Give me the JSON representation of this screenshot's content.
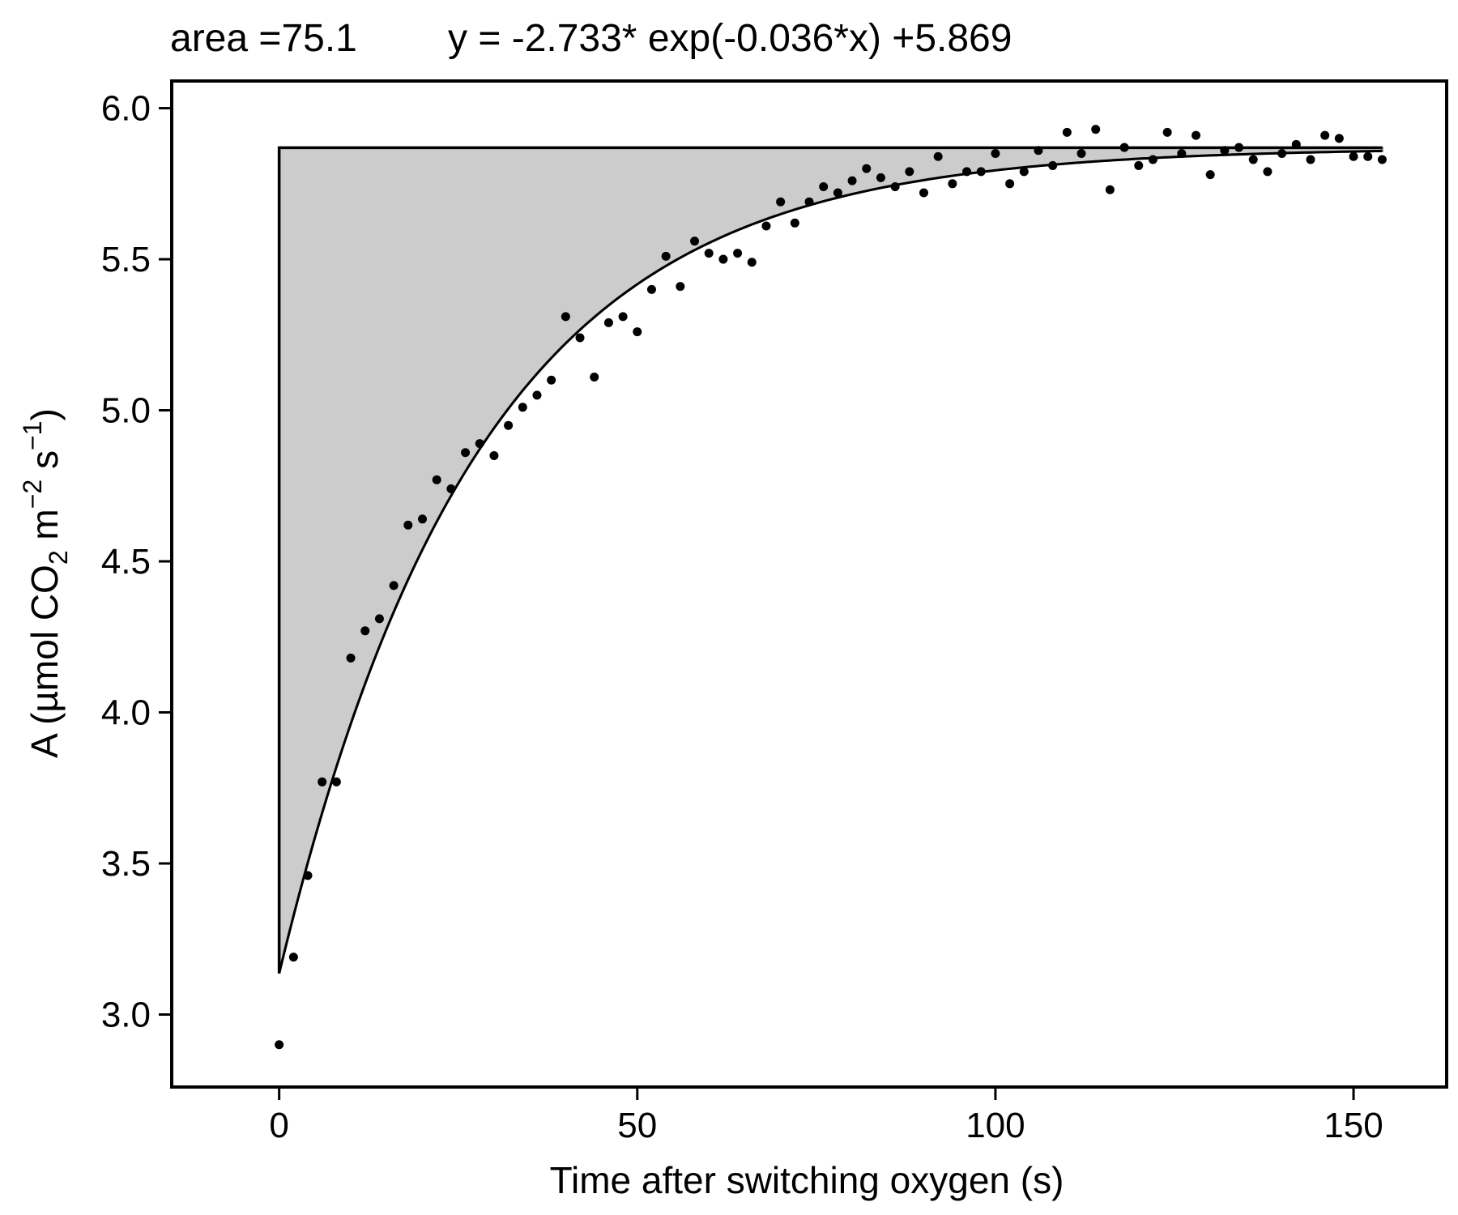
{
  "header": {
    "area_text": "area =75.1",
    "equation_text": "y = -2.733* exp(-0.036*x) +5.869"
  },
  "chart_data": {
    "type": "scatter",
    "title": "",
    "xlabel": "Time after switching oxygen (s)",
    "ylabel": {
      "prefix": "A (µmol CO",
      "sub": "2",
      "mid": " m",
      "sup1": "−2",
      "mid2": " s",
      "sup2": "−1",
      "suffix": ")"
    },
    "xlim": [
      -15,
      163
    ],
    "ylim": [
      2.76,
      6.09
    ],
    "xticks": [
      0,
      50,
      100,
      150
    ],
    "xtick_labels": [
      "0",
      "50",
      "100",
      "150"
    ],
    "yticks": [
      3.0,
      3.5,
      4.0,
      4.5,
      5.0,
      5.5,
      6.0
    ],
    "ytick_labels": [
      "3.0",
      "3.5",
      "4.0",
      "4.5",
      "5.0",
      "5.5",
      "6.0"
    ],
    "grid": false,
    "fit": {
      "a": -2.733,
      "b": -0.036,
      "c": 5.869,
      "x_range": [
        0,
        154
      ]
    },
    "area": 75.1,
    "colors": {
      "points": "#000000",
      "fit_line": "#000000",
      "area_fill": "#cccccc",
      "area_edge": "#888888"
    },
    "series": [
      {
        "x": [
          0,
          2,
          4,
          6,
          8,
          10,
          12,
          14,
          16,
          18,
          20,
          22,
          24,
          26,
          28,
          30,
          32,
          34,
          36,
          38,
          40,
          42,
          44,
          46,
          48,
          50,
          52,
          54,
          56,
          58,
          60,
          62,
          64,
          66,
          68,
          70,
          72,
          74,
          76,
          78,
          80,
          82,
          84,
          86,
          88,
          90,
          92,
          94,
          96,
          98,
          100,
          102,
          104,
          106,
          108,
          110,
          112,
          114,
          116,
          118,
          120,
          122,
          124,
          126,
          128,
          130,
          132,
          134,
          136,
          138,
          140,
          142,
          144,
          146,
          148,
          150,
          152,
          154
        ],
        "y": [
          2.9,
          3.19,
          3.46,
          3.77,
          3.77,
          4.18,
          4.27,
          4.31,
          4.42,
          4.62,
          4.64,
          4.77,
          4.74,
          4.86,
          4.89,
          4.85,
          4.95,
          5.01,
          5.05,
          5.1,
          5.31,
          5.24,
          5.11,
          5.29,
          5.31,
          5.26,
          5.4,
          5.51,
          5.41,
          5.56,
          5.52,
          5.5,
          5.52,
          5.49,
          5.61,
          5.69,
          5.62,
          5.69,
          5.74,
          5.72,
          5.76,
          5.8,
          5.77,
          5.74,
          5.79,
          5.72,
          5.84,
          5.75,
          5.79,
          5.79,
          5.85,
          5.75,
          5.79,
          5.86,
          5.81,
          5.92,
          5.85,
          5.93,
          5.73,
          5.87,
          5.81,
          5.83,
          5.92,
          5.85,
          5.91,
          5.78,
          5.86,
          5.87,
          5.83,
          5.79,
          5.85,
          5.88,
          5.83,
          5.91,
          5.9,
          5.84,
          5.84,
          5.83
        ]
      }
    ]
  }
}
